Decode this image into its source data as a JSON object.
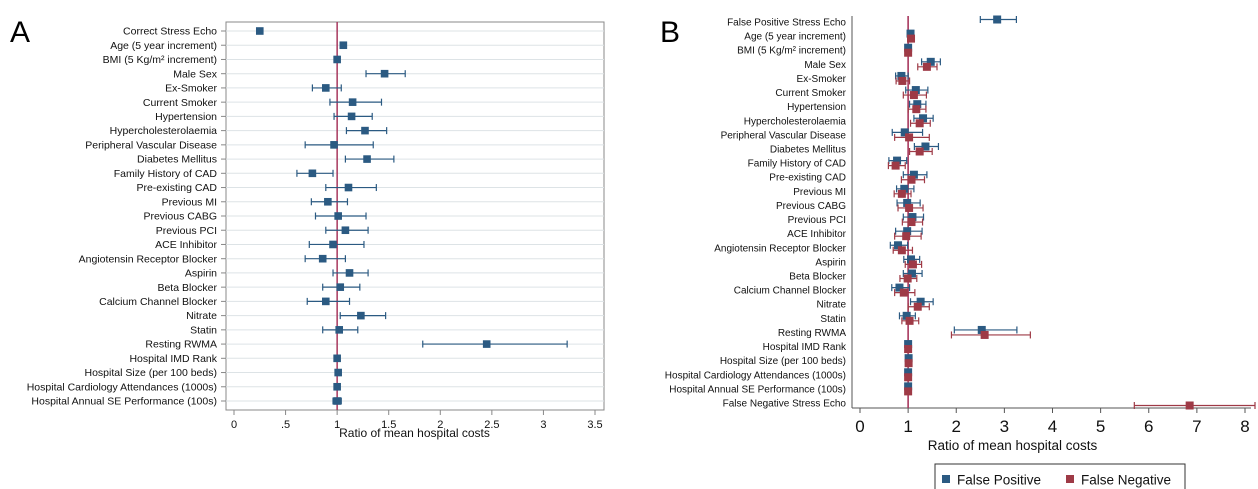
{
  "chart_data": [
    {
      "panel": "A",
      "type": "scatter",
      "xlabel": "Ratio of mean hospital costs",
      "xlim": [
        0,
        3.5
      ],
      "xticks": [
        "0",
        ".5",
        "1",
        "1.5",
        "2",
        "2.5",
        "3",
        "3.5"
      ],
      "reference_line": 1,
      "grid": "horizontal",
      "colors": {
        "series": "#2b5a82",
        "reference": "#a8385e"
      },
      "categories": [
        "Correct Stress Echo",
        "Age (5 year increment)",
        "BMI (5 Kg/m² increment)",
        "Male Sex",
        "Ex-Smoker",
        "Current Smoker",
        "Hypertension",
        "Hypercholesterolaemia",
        "Peripheral Vascular Disease",
        "Diabetes Mellitus",
        "Family History of CAD",
        "Pre-existing CAD",
        "Previous MI",
        "Previous CABG",
        "Previous PCI",
        "ACE Inhibitor",
        "Angiotensin Receptor Blocker",
        "Aspirin",
        "Beta Blocker",
        "Calcium Channel Blocker",
        "Nitrate",
        "Statin",
        "Resting RWMA",
        "Hospital IMD Rank",
        "Hospital Size (per 100 beds)",
        "Hospital Cardiology Attendances (1000s)",
        "Hospital Annual SE Performance (100s)"
      ],
      "estimates": [
        {
          "est": 0.25,
          "lo": null,
          "hi": null
        },
        {
          "est": 1.06,
          "lo": 1.03,
          "hi": 1.09
        },
        {
          "est": 1.0,
          "lo": 0.98,
          "hi": 1.02
        },
        {
          "est": 1.46,
          "lo": 1.28,
          "hi": 1.66
        },
        {
          "est": 0.89,
          "lo": 0.76,
          "hi": 1.04
        },
        {
          "est": 1.15,
          "lo": 0.93,
          "hi": 1.43
        },
        {
          "est": 1.14,
          "lo": 0.97,
          "hi": 1.34
        },
        {
          "est": 1.27,
          "lo": 1.09,
          "hi": 1.48
        },
        {
          "est": 0.97,
          "lo": 0.69,
          "hi": 1.35
        },
        {
          "est": 1.29,
          "lo": 1.08,
          "hi": 1.55
        },
        {
          "est": 0.76,
          "lo": 0.61,
          "hi": 0.96
        },
        {
          "est": 1.11,
          "lo": 0.89,
          "hi": 1.38
        },
        {
          "est": 0.91,
          "lo": 0.75,
          "hi": 1.1
        },
        {
          "est": 1.01,
          "lo": 0.79,
          "hi": 1.28
        },
        {
          "est": 1.08,
          "lo": 0.89,
          "hi": 1.3
        },
        {
          "est": 0.96,
          "lo": 0.73,
          "hi": 1.26
        },
        {
          "est": 0.86,
          "lo": 0.69,
          "hi": 1.08
        },
        {
          "est": 1.12,
          "lo": 0.96,
          "hi": 1.3
        },
        {
          "est": 1.03,
          "lo": 0.86,
          "hi": 1.22
        },
        {
          "est": 0.89,
          "lo": 0.71,
          "hi": 1.12
        },
        {
          "est": 1.23,
          "lo": 1.03,
          "hi": 1.47
        },
        {
          "est": 1.02,
          "lo": 0.86,
          "hi": 1.2
        },
        {
          "est": 2.45,
          "lo": 1.83,
          "hi": 3.23
        },
        {
          "est": 1.0,
          "lo": 0.99,
          "hi": 1.01
        },
        {
          "est": 1.01,
          "lo": 1.0,
          "hi": 1.02
        },
        {
          "est": 1.0,
          "lo": 0.99,
          "hi": 1.01
        },
        {
          "est": 1.0,
          "lo": 0.96,
          "hi": 1.04
        }
      ]
    },
    {
      "panel": "B",
      "type": "scatter",
      "xlabel": "Ratio of mean hospital costs",
      "xlim": [
        0,
        8
      ],
      "xticks": [
        "0",
        "1",
        "2",
        "3",
        "4",
        "5",
        "6",
        "7",
        "8"
      ],
      "reference_line": 1,
      "grid": "none",
      "colors": {
        "reference": "#a8385e"
      },
      "categories": [
        "False Positive Stress Echo",
        "Age (5 year increment)",
        "BMI (5 Kg/m² increment)",
        "Male Sex",
        "Ex-Smoker",
        "Current Smoker",
        "Hypertension",
        "Hypercholesterolaemia",
        "Peripheral Vascular Disease",
        "Diabetes Mellitus",
        "Family History of CAD",
        "Pre-existing CAD",
        "Previous MI",
        "Previous CABG",
        "Previous PCI",
        "ACE Inhibitor",
        "Angiotensin Receptor Blocker",
        "Aspirin",
        "Beta Blocker",
        "Calcium Channel Blocker",
        "Nitrate",
        "Statin",
        "Resting RWMA",
        "Hospital IMD Rank",
        "Hospital Size (per 100 beds)",
        "Hospital Cardiology Attendances (1000s)",
        "Hospital Annual SE Performance (100s)",
        "False Negative Stress Echo"
      ],
      "legend": {
        "position": "bottom"
      },
      "series": [
        {
          "name": "False Positive",
          "color": "#2b5a82",
          "values": [
            {
              "est": 2.85,
              "lo": 2.5,
              "hi": 3.25
            },
            {
              "est": 1.05,
              "lo": 1.02,
              "hi": 1.08
            },
            {
              "est": 1.0,
              "lo": 0.98,
              "hi": 1.02
            },
            {
              "est": 1.47,
              "lo": 1.28,
              "hi": 1.67
            },
            {
              "est": 0.86,
              "lo": 0.74,
              "hi": 1.0
            },
            {
              "est": 1.16,
              "lo": 0.95,
              "hi": 1.41
            },
            {
              "est": 1.19,
              "lo": 1.03,
              "hi": 1.37
            },
            {
              "est": 1.31,
              "lo": 1.12,
              "hi": 1.52
            },
            {
              "est": 0.93,
              "lo": 0.67,
              "hi": 1.3
            },
            {
              "est": 1.36,
              "lo": 1.13,
              "hi": 1.63
            },
            {
              "est": 0.77,
              "lo": 0.6,
              "hi": 0.97
            },
            {
              "est": 1.12,
              "lo": 0.9,
              "hi": 1.39
            },
            {
              "est": 0.92,
              "lo": 0.76,
              "hi": 1.12
            },
            {
              "est": 0.98,
              "lo": 0.77,
              "hi": 1.25
            },
            {
              "est": 1.09,
              "lo": 0.9,
              "hi": 1.32
            },
            {
              "est": 0.98,
              "lo": 0.74,
              "hi": 1.29
            },
            {
              "est": 0.79,
              "lo": 0.63,
              "hi": 0.99
            },
            {
              "est": 1.06,
              "lo": 0.91,
              "hi": 1.24
            },
            {
              "est": 1.08,
              "lo": 0.9,
              "hi": 1.29
            },
            {
              "est": 0.82,
              "lo": 0.66,
              "hi": 1.03
            },
            {
              "est": 1.26,
              "lo": 1.05,
              "hi": 1.52
            },
            {
              "est": 0.97,
              "lo": 0.82,
              "hi": 1.15
            },
            {
              "est": 2.53,
              "lo": 1.96,
              "hi": 3.26
            },
            {
              "est": 1.0,
              "lo": 0.99,
              "hi": 1.01
            },
            {
              "est": 1.01,
              "lo": 1.0,
              "hi": 1.02
            },
            {
              "est": 1.0,
              "lo": 0.99,
              "hi": 1.01
            },
            {
              "est": 1.0,
              "lo": 0.97,
              "hi": 1.03
            },
            null
          ]
        },
        {
          "name": "False Negative",
          "color": "#9e3a46",
          "values": [
            null,
            {
              "est": 1.06,
              "lo": 1.03,
              "hi": 1.09
            },
            {
              "est": 1.0,
              "lo": 0.98,
              "hi": 1.02
            },
            {
              "est": 1.39,
              "lo": 1.2,
              "hi": 1.6
            },
            {
              "est": 0.88,
              "lo": 0.75,
              "hi": 1.03
            },
            {
              "est": 1.12,
              "lo": 0.9,
              "hi": 1.38
            },
            {
              "est": 1.17,
              "lo": 1.0,
              "hi": 1.37
            },
            {
              "est": 1.24,
              "lo": 1.05,
              "hi": 1.46
            },
            {
              "est": 1.02,
              "lo": 0.72,
              "hi": 1.44
            },
            {
              "est": 1.24,
              "lo": 1.03,
              "hi": 1.5
            },
            {
              "est": 0.74,
              "lo": 0.59,
              "hi": 0.94
            },
            {
              "est": 1.07,
              "lo": 0.86,
              "hi": 1.34
            },
            {
              "est": 0.87,
              "lo": 0.71,
              "hi": 1.06
            },
            {
              "est": 1.02,
              "lo": 0.79,
              "hi": 1.31
            },
            {
              "est": 1.07,
              "lo": 0.88,
              "hi": 1.3
            },
            {
              "est": 0.96,
              "lo": 0.72,
              "hi": 1.27
            },
            {
              "est": 0.87,
              "lo": 0.69,
              "hi": 1.09
            },
            {
              "est": 1.1,
              "lo": 0.94,
              "hi": 1.28
            },
            {
              "est": 0.99,
              "lo": 0.83,
              "hi": 1.18
            },
            {
              "est": 0.91,
              "lo": 0.72,
              "hi": 1.14
            },
            {
              "est": 1.2,
              "lo": 1.0,
              "hi": 1.44
            },
            {
              "est": 1.03,
              "lo": 0.87,
              "hi": 1.22
            },
            {
              "est": 2.59,
              "lo": 1.9,
              "hi": 3.54
            },
            {
              "est": 1.0,
              "lo": 0.99,
              "hi": 1.01
            },
            {
              "est": 1.01,
              "lo": 1.0,
              "hi": 1.02
            },
            {
              "est": 1.0,
              "lo": 0.99,
              "hi": 1.01
            },
            {
              "est": 1.0,
              "lo": 0.97,
              "hi": 1.03
            },
            {
              "est": 6.85,
              "lo": 5.7,
              "hi": 8.25
            }
          ]
        }
      ]
    }
  ],
  "panel_letters": {
    "a": "A",
    "b": "B"
  }
}
